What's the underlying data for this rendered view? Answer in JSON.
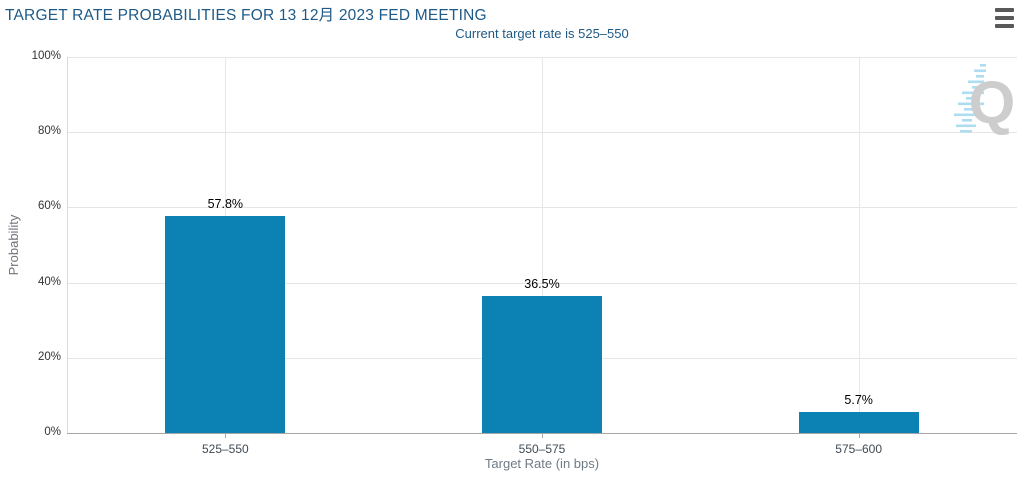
{
  "chart_data": {
    "type": "bar",
    "title": "TARGET RATE PROBABILITIES FOR 13 12月 2023 FED MEETING",
    "subtitle": "Current target rate is 525–550",
    "categories": [
      "525–550",
      "550–575",
      "575–600"
    ],
    "values": [
      57.8,
      36.5,
      5.7
    ],
    "value_labels": [
      "57.8%",
      "36.5%",
      "5.7%"
    ],
    "xlabel": "Target Rate (in bps)",
    "ylabel": "Probability",
    "ylim": [
      0,
      100
    ],
    "yticks": [
      {
        "value": 0,
        "label": "0%"
      },
      {
        "value": 20,
        "label": "20%"
      },
      {
        "value": 40,
        "label": "40%"
      },
      {
        "value": 60,
        "label": "60%"
      },
      {
        "value": 80,
        "label": "80%"
      },
      {
        "value": 100,
        "label": "100%"
      }
    ],
    "grid": true,
    "legend": "none",
    "bar_color": "#0c81b3"
  },
  "menu": {
    "icon": "hamburger-menu-icon"
  },
  "watermark": {
    "icon": "quikstrike-q-logo-icon",
    "letter": "Q"
  },
  "colors": {
    "accent_blue": "#0c81b3",
    "title_blue": "#1d5a87",
    "gridline": "#e5e5e5",
    "axis_line": "#a6a6a6"
  }
}
